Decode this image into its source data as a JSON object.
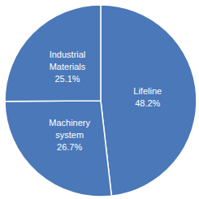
{
  "chart_data": {
    "type": "pie",
    "categories": [
      "Lifeline",
      "Machinery system",
      "Industrial Materials"
    ],
    "values": [
      48.2,
      26.7,
      25.1
    ],
    "value_labels": [
      "48.2%",
      "26.7%",
      "25.1%"
    ],
    "color": "#4a78b8",
    "data_labels": true
  }
}
